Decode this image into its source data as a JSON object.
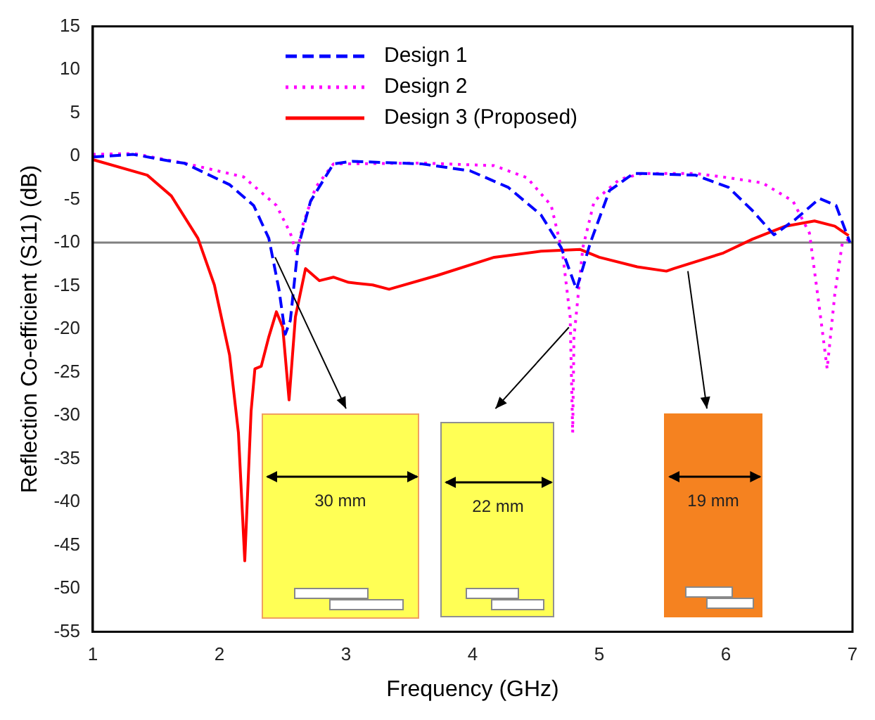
{
  "chart_data": {
    "type": "line",
    "xlabel": "Frequency (GHz)",
    "ylabel": "Reflection Co-efficient (S11) (dB)",
    "xlim": [
      1,
      7
    ],
    "xticks": [
      1,
      2,
      3,
      4,
      5,
      6,
      7
    ],
    "ylim": [
      -55,
      15
    ],
    "yticks": [
      -55,
      -50,
      -45,
      -40,
      -35,
      -30,
      -25,
      -20,
      -15,
      -10,
      -5,
      0,
      5,
      10,
      15
    ],
    "grid": false,
    "legend": "top",
    "marker": "none",
    "ref_lines": [
      {
        "axis": "y",
        "value": -10,
        "color": "#808080"
      }
    ],
    "annotations": [
      "30 mm",
      "22 mm",
      "19 mm"
    ],
    "series": [
      {
        "name": "Design 1",
        "color": "#0000ff",
        "line_style": "dashed",
        "x": [
          1.0,
          1.32,
          1.66,
          1.72,
          2.08,
          2.27,
          2.39,
          2.47,
          2.52,
          2.56,
          2.62,
          2.72,
          2.9,
          3.05,
          3.6,
          3.98,
          4.28,
          4.54,
          4.7,
          4.82,
          4.93,
          5.08,
          5.27,
          5.34,
          5.76,
          6.02,
          6.21,
          6.38,
          6.55,
          6.74,
          6.87,
          6.98
        ],
        "values": [
          -0.1,
          0.2,
          -0.7,
          -0.8,
          -3.3,
          -5.7,
          -9.5,
          -15.4,
          -20.6,
          -19,
          -10.6,
          -5.2,
          -0.9,
          -0.6,
          -0.9,
          -1.7,
          -3.6,
          -6.8,
          -10.6,
          -15.4,
          -10,
          -4,
          -2,
          -2,
          -2.2,
          -3.6,
          -6.3,
          -9.1,
          -7.3,
          -4.9,
          -5.7,
          -10
        ]
      },
      {
        "name": "Design 2",
        "color": "#ff00ff",
        "line_style": "dotted",
        "x": [
          1.0,
          1.32,
          1.72,
          2.19,
          2.45,
          2.56,
          2.61,
          2.66,
          2.76,
          2.9,
          3.6,
          4.17,
          4.43,
          4.62,
          4.71,
          4.77,
          4.79,
          4.8,
          4.87,
          4.96,
          5.16,
          5.34,
          5.76,
          6.02,
          6.29,
          6.53,
          6.66,
          6.74,
          6.8,
          6.86,
          6.92,
          7.0
        ],
        "values": [
          0.2,
          0.3,
          -0.8,
          -2.4,
          -5.7,
          -8.9,
          -11.3,
          -7.9,
          -3.6,
          -0.9,
          -0.8,
          -1.1,
          -2.5,
          -5.7,
          -11.2,
          -18.6,
          -32,
          -21,
          -10.6,
          -5.2,
          -2.7,
          -2,
          -2,
          -2.5,
          -3.1,
          -5.2,
          -8.9,
          -17.7,
          -24.6,
          -16,
          -10,
          -9.4
        ]
      },
      {
        "name": "Design 3 (Proposed)",
        "color": "#ff0000",
        "line_style": "solid",
        "x": [
          1.0,
          1.43,
          1.62,
          1.83,
          1.96,
          2.08,
          2.15,
          2.2,
          2.25,
          2.28,
          2.33,
          2.39,
          2.45,
          2.5,
          2.55,
          2.6,
          2.68,
          2.79,
          2.9,
          3.02,
          3.21,
          3.34,
          3.72,
          4.17,
          4.54,
          4.85,
          5.0,
          5.3,
          5.53,
          5.59,
          5.98,
          6.21,
          6.47,
          6.7,
          6.86,
          6.97
        ],
        "values": [
          -0.4,
          -2.2,
          -4.6,
          -9.5,
          -14.9,
          -23,
          -32,
          -46.8,
          -29.5,
          -24.6,
          -24.3,
          -20.9,
          -18,
          -19.8,
          -28.2,
          -18.6,
          -13,
          -14.4,
          -14,
          -14.6,
          -14.9,
          -15.4,
          -13.8,
          -11.7,
          -11,
          -10.8,
          -11.7,
          -12.8,
          -13.3,
          -13,
          -11.2,
          -9.6,
          -8.1,
          -7.5,
          -8.1,
          -9.2
        ]
      }
    ]
  }
}
